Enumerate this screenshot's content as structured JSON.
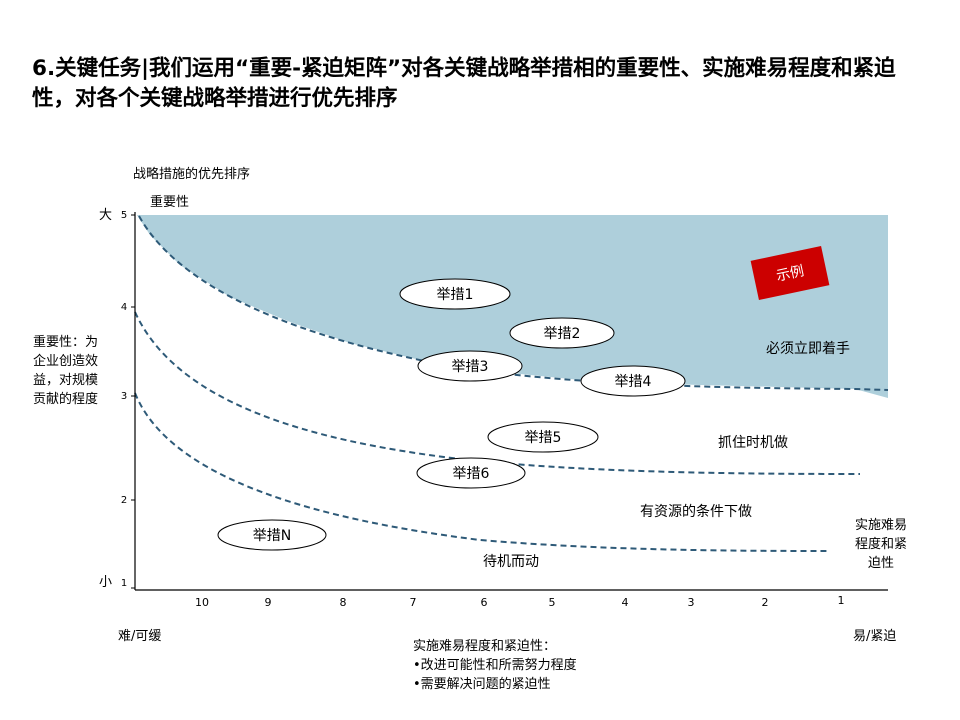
{
  "title": "6.关键任务|我们运用“重要-紧迫矩阵”对各关键战略举措相的重要性、实施难易程度和紧迫性，对各个关键战略举措进行优先排序",
  "diagram": {
    "heading": "战略措施的优先排序",
    "y_axis": {
      "name": "重要性",
      "top_label": "大",
      "bottom_label": "小",
      "ticks": [
        "5",
        "4",
        "3",
        "2",
        "1"
      ],
      "description": [
        "重要性：为",
        "企业创造效",
        "益，对规模",
        "贡献的程度"
      ]
    },
    "x_axis": {
      "ticks": [
        "10",
        "9",
        "8",
        "7",
        "6",
        "5",
        "4",
        "3",
        "2",
        "1"
      ],
      "left_label": "难/可缓",
      "right_label": "易/紧迫",
      "end_label": [
        "实施难易",
        "程度和紧",
        "迫性"
      ],
      "description_title": "实施难易程度和紧迫性：",
      "description_items": [
        "•改进可能性和所需努力程度",
        "•需要解决问题的紧迫性"
      ]
    },
    "zones": [
      "必须立即着手",
      "抓住时机做",
      "有资源的条件下做",
      "待机而动"
    ],
    "initiatives": [
      "举措1",
      "举措2",
      "举措3",
      "举措4",
      "举措5",
      "举措6",
      "举措N"
    ],
    "stamp": "示例",
    "colors": {
      "priority_zone": "#aecfdb",
      "curve": "#2e5a78",
      "stamp": "#cc0000"
    }
  }
}
